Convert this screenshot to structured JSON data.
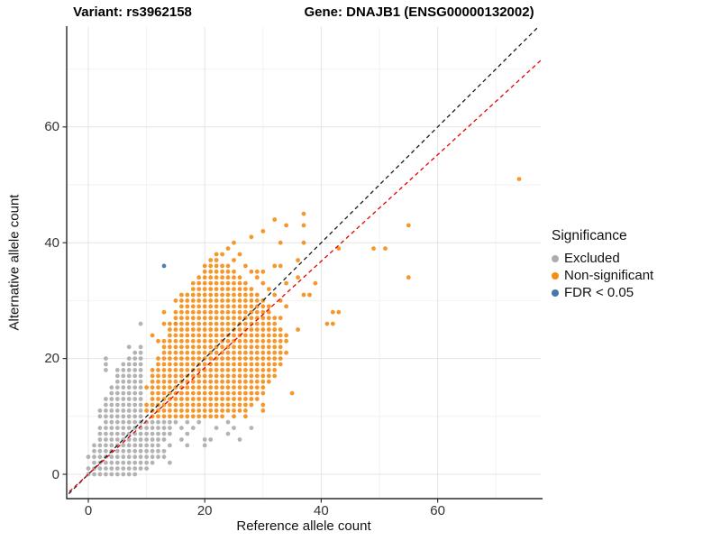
{
  "figure": {
    "title_left": "Variant: rs3962158",
    "title_right": "Gene: DNAJB1 (ENSG00000132002)"
  },
  "chart_data": {
    "type": "scatter",
    "title": "Variant: rs3962158 — Gene: DNAJB1 (ENSG00000132002)",
    "xlabel": "Reference allele count",
    "ylabel": "Alternative allele count",
    "x_ticks": [
      0,
      20,
      40,
      60
    ],
    "y_ticks": [
      0,
      20,
      40,
      60
    ],
    "x_minor_ticks": [
      10,
      30,
      50,
      70
    ],
    "y_minor_ticks": [
      10,
      30,
      50,
      70
    ],
    "xlim": [
      -3.7,
      77.7
    ],
    "ylim": [
      -4.2,
      77.3
    ],
    "grid": true,
    "points_are_integer_counts": true,
    "row_runs_format": "[y, x_start, x_end] inclusive run of integer points",
    "legend": {
      "title": "Significance",
      "position": "right",
      "items": [
        {
          "label": "Excluded",
          "color": "#ACACAC"
        },
        {
          "label": "Non-significant",
          "color": "#F58C14"
        },
        {
          "label": "FDR < 0.05",
          "color": "#4878A8"
        }
      ]
    },
    "lines": [
      {
        "name": "identity",
        "slope": 1.0,
        "intercept": 0,
        "color": "#1A1A1A",
        "dashed": true
      },
      {
        "name": "fit",
        "slope": 0.92,
        "intercept": 0,
        "color": "#E60000",
        "dashed": true
      }
    ],
    "series": [
      {
        "name": "Excluded",
        "color": "#ABABAB",
        "opacity": 0.9,
        "row_runs": [
          [
            0,
            0,
            8
          ],
          [
            1,
            0,
            10
          ],
          [
            2,
            1,
            11
          ],
          [
            2,
            14,
            14
          ],
          [
            3,
            0,
            13
          ],
          [
            4,
            1,
            13
          ],
          [
            5,
            1,
            12
          ],
          [
            5,
            14,
            14
          ],
          [
            5,
            17,
            17
          ],
          [
            5,
            20,
            20
          ],
          [
            6,
            2,
            13
          ],
          [
            6,
            16,
            16
          ],
          [
            6,
            20,
            21
          ],
          [
            6,
            26,
            26
          ],
          [
            7,
            2,
            14
          ],
          [
            7,
            17,
            17
          ],
          [
            7,
            24,
            24
          ],
          [
            8,
            2,
            14
          ],
          [
            8,
            16,
            16
          ],
          [
            8,
            18,
            18
          ],
          [
            8,
            22,
            22
          ],
          [
            8,
            25,
            25
          ],
          [
            8,
            28,
            28
          ],
          [
            9,
            3,
            15
          ],
          [
            9,
            17,
            17
          ],
          [
            9,
            19,
            19
          ],
          [
            9,
            24,
            24
          ],
          [
            10,
            2,
            9
          ],
          [
            11,
            2,
            9
          ],
          [
            12,
            3,
            9
          ],
          [
            13,
            3,
            9
          ],
          [
            14,
            4,
            9
          ],
          [
            15,
            4,
            9
          ],
          [
            16,
            5,
            9
          ],
          [
            17,
            5,
            9
          ],
          [
            18,
            3,
            3
          ],
          [
            18,
            5,
            9
          ],
          [
            19,
            3,
            3
          ],
          [
            19,
            6,
            9
          ],
          [
            20,
            3,
            3
          ],
          [
            20,
            7,
            9
          ],
          [
            21,
            8,
            9
          ],
          [
            22,
            7,
            7
          ],
          [
            22,
            9,
            9
          ],
          [
            26,
            9,
            9
          ],
          [
            26,
            15,
            15
          ]
        ]
      },
      {
        "name": "Non-significant",
        "color": "#F58C14",
        "opacity": 0.9,
        "row_runs": [
          [
            10,
            11,
            23
          ],
          [
            10,
            25,
            25
          ],
          [
            10,
            27,
            27
          ],
          [
            11,
            10,
            27
          ],
          [
            11,
            30,
            30
          ],
          [
            12,
            10,
            28
          ],
          [
            12,
            30,
            30
          ],
          [
            13,
            11,
            29
          ],
          [
            14,
            11,
            30
          ],
          [
            14,
            35,
            35
          ],
          [
            15,
            10,
            30
          ],
          [
            16,
            11,
            31
          ],
          [
            17,
            11,
            32
          ],
          [
            18,
            11,
            32
          ],
          [
            19,
            12,
            33
          ],
          [
            20,
            12,
            33
          ],
          [
            21,
            13,
            34
          ],
          [
            22,
            13,
            33
          ],
          [
            23,
            12,
            34
          ],
          [
            24,
            11,
            11
          ],
          [
            24,
            14,
            34
          ],
          [
            25,
            14,
            33
          ],
          [
            25,
            36,
            36
          ],
          [
            26,
            13,
            32
          ],
          [
            26,
            41,
            42
          ],
          [
            27,
            15,
            33
          ],
          [
            28,
            13,
            13
          ],
          [
            28,
            15,
            31
          ],
          [
            28,
            42,
            43
          ],
          [
            29,
            16,
            31
          ],
          [
            29,
            34,
            34
          ],
          [
            30,
            15,
            30
          ],
          [
            30,
            33,
            33
          ],
          [
            31,
            16,
            29
          ],
          [
            31,
            32,
            32
          ],
          [
            31,
            37,
            38
          ],
          [
            32,
            18,
            28
          ],
          [
            32,
            31,
            31
          ],
          [
            33,
            18,
            27
          ],
          [
            33,
            30,
            30
          ],
          [
            33,
            34,
            34
          ],
          [
            33,
            39,
            39
          ],
          [
            34,
            19,
            26
          ],
          [
            34,
            29,
            29
          ],
          [
            34,
            36,
            36
          ],
          [
            34,
            55,
            55
          ],
          [
            35,
            20,
            25
          ],
          [
            35,
            28,
            30
          ],
          [
            36,
            20,
            24
          ],
          [
            36,
            27,
            27
          ],
          [
            36,
            32,
            33
          ],
          [
            37,
            21,
            22
          ],
          [
            37,
            25,
            25
          ],
          [
            37,
            36,
            36
          ],
          [
            38,
            22,
            23
          ],
          [
            38,
            26,
            26
          ],
          [
            39,
            24,
            24
          ],
          [
            39,
            43,
            43
          ],
          [
            39,
            49,
            49
          ],
          [
            39,
            51,
            51
          ],
          [
            40,
            25,
            25
          ],
          [
            40,
            33,
            33
          ],
          [
            40,
            37,
            37
          ],
          [
            41,
            28,
            28
          ],
          [
            42,
            30,
            30
          ],
          [
            43,
            34,
            34
          ],
          [
            43,
            37,
            37
          ],
          [
            43,
            55,
            55
          ],
          [
            44,
            32,
            32
          ],
          [
            45,
            37,
            37
          ],
          [
            51,
            74,
            74
          ]
        ]
      },
      {
        "name": "FDR < 0.05",
        "color": "#4878A8",
        "opacity": 0.95,
        "row_runs": [
          [
            36,
            13,
            13
          ]
        ]
      }
    ]
  }
}
